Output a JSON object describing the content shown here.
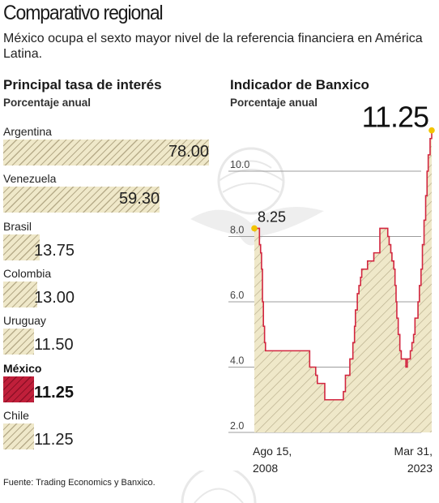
{
  "title": "Comparativo regional",
  "subtitle": "México ocupa el sexto mayor nivel de la referencia financiera en América Latina.",
  "source": "Fuente: Trading Economics y Banxico.",
  "colors": {
    "bar_fill": "#efe8c9",
    "hatch": "#b7ac8a",
    "highlight": "#c01f3a",
    "line": "#d2263f",
    "marker": "#f2c400"
  },
  "chart_data": [
    {
      "type": "bar",
      "orientation": "horizontal",
      "title": "Principal tasa de interés",
      "subtitle": "Porcentaje anual",
      "categories": [
        "Argentina",
        "Venezuela",
        "Brasil",
        "Colombia",
        "Uruguay",
        "México",
        "Chile"
      ],
      "values": [
        78.0,
        59.3,
        13.75,
        13.0,
        11.5,
        11.25,
        11.25
      ],
      "value_labels": [
        "78.00",
        "59.30",
        "13.75",
        "13.00",
        "11.50",
        "11.25",
        "11.25"
      ],
      "highlight": "México"
    },
    {
      "type": "area",
      "title": "Indicador de Banxico",
      "subtitle": "Porcentaje anual",
      "yticks": [
        "10.0",
        "8.0",
        "6.0",
        "4.0",
        "2.0"
      ],
      "ylim": [
        2.0,
        11.25
      ],
      "xlabels": [
        {
          "line1": "Ago 15,",
          "line2": "2008"
        },
        {
          "line1": "Mar 31,",
          "line2": "2023"
        }
      ],
      "start_label": "8.25",
      "end_label": "11.25",
      "x": [
        "2008-08-15",
        "2009-01-16",
        "2009-02-20",
        "2009-03-20",
        "2009-04-17",
        "2009-05-15",
        "2009-06-19",
        "2009-07-17",
        "2013-03-08",
        "2013-09-06",
        "2013-10-25",
        "2014-06-06",
        "2015-12-17",
        "2016-02-17",
        "2016-06-30",
        "2016-09-29",
        "2016-11-17",
        "2016-12-15",
        "2017-02-09",
        "2017-03-30",
        "2017-05-18",
        "2017-06-22",
        "2017-12-14",
        "2018-06-21",
        "2018-12-20",
        "2019-08-15",
        "2019-09-26",
        "2019-11-14",
        "2019-12-19",
        "2020-02-13",
        "2020-03-20",
        "2020-04-21",
        "2020-05-14",
        "2020-06-25",
        "2020-08-13",
        "2020-09-24",
        "2021-02-11",
        "2021-03-25",
        "2021-06-24",
        "2021-08-12",
        "2021-09-30",
        "2021-11-11",
        "2021-12-16",
        "2022-02-10",
        "2022-03-24",
        "2022-05-12",
        "2022-06-23",
        "2022-08-11",
        "2022-09-29",
        "2022-11-10",
        "2022-12-15",
        "2023-02-09",
        "2023-03-30"
      ],
      "y": [
        8.25,
        7.75,
        7.5,
        7.0,
        6.0,
        5.25,
        4.75,
        4.5,
        4.0,
        3.75,
        3.5,
        3.0,
        3.25,
        3.75,
        4.25,
        4.75,
        5.25,
        5.75,
        6.25,
        6.5,
        6.75,
        7.0,
        7.25,
        7.5,
        8.25,
        8.0,
        7.75,
        7.5,
        7.25,
        7.0,
        6.5,
        6.0,
        5.5,
        5.0,
        4.5,
        4.25,
        4.0,
        4.25,
        4.5,
        4.75,
        5.0,
        5.5,
        5.5,
        6.0,
        6.5,
        7.0,
        7.75,
        8.5,
        9.25,
        10.0,
        10.5,
        11.0,
        11.25
      ]
    }
  ]
}
